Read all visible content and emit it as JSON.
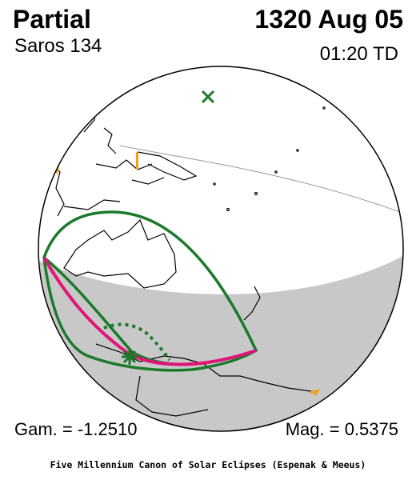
{
  "eclipse": {
    "type": "Partial",
    "date": "1320 Aug 05",
    "saros": "Saros 134",
    "time": "01:20 TD",
    "gamma": "Gam. = -1.2510",
    "magnitude": "Mag. = 0.5375"
  },
  "credit": "Five Millennium Canon of Solar Eclipses (Espenak & Meeus)",
  "colors": {
    "night_shade": "#c8c8c8",
    "coastline": "#000000",
    "path_outline": "#1b7a2a",
    "max_eclipse_curve": "#e0157a",
    "land_highlight": "#f0a020"
  },
  "markers": {
    "sub_solar_point": "x-icon",
    "greatest_eclipse": "asterisk-icon"
  }
}
